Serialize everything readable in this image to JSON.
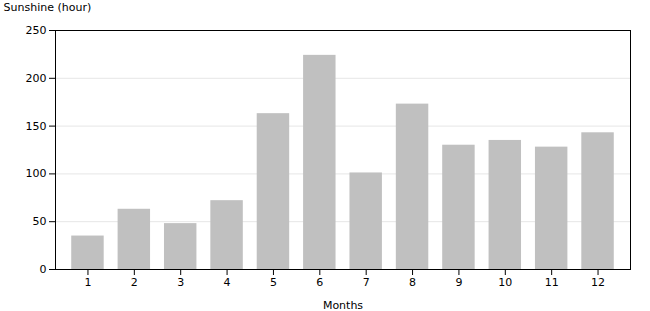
{
  "chart_data": {
    "type": "bar",
    "x": [
      1,
      2,
      3,
      4,
      5,
      6,
      7,
      8,
      9,
      10,
      11,
      12
    ],
    "values": [
      35,
      63,
      48,
      72,
      163,
      224,
      101,
      173,
      130,
      135,
      128,
      143
    ],
    "color": "#c0c0c0",
    "xlabel": "Months",
    "ylabel": "Sunshine (hour)",
    "xlim": [
      0.3,
      12.7
    ],
    "xticks": [
      1,
      2,
      3,
      4,
      5,
      6,
      7,
      8,
      9,
      10,
      11,
      12
    ],
    "ylim": [
      0,
      250
    ],
    "yticks": [
      0,
      50,
      100,
      150,
      200,
      250
    ],
    "grid": true
  }
}
